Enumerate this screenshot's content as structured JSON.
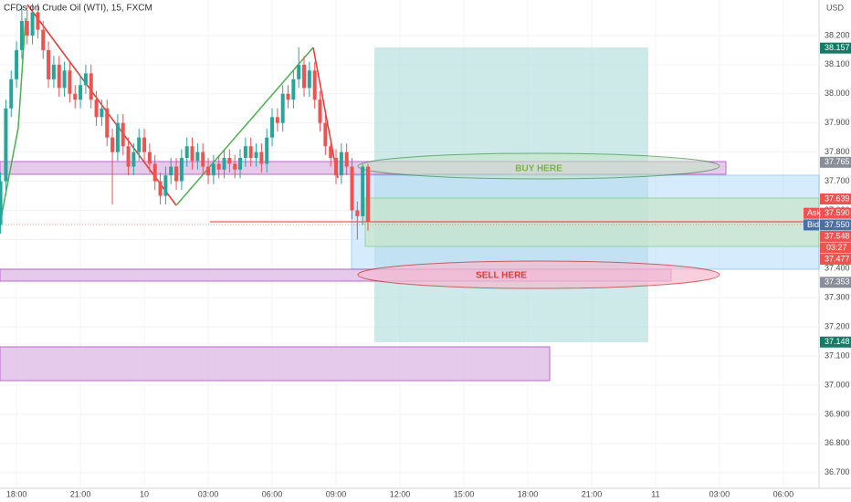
{
  "chart_data": {
    "type": "candlestick",
    "title": "CFDs on Crude Oil (WTI), 15, FXCM",
    "currency": "USD",
    "up_color": "#26a69a",
    "down_color": "#ef5350",
    "xlim": [
      -3.1,
      150.7
    ],
    "ylim": [
      36.646,
      38.322
    ],
    "x": [
      -3,
      -2,
      -1,
      0,
      1,
      2,
      3,
      4,
      5,
      6,
      7,
      8,
      9,
      10,
      11,
      12,
      13,
      14,
      15,
      16,
      17,
      18,
      19,
      20,
      21,
      22,
      23,
      24,
      25,
      26,
      27,
      28,
      29,
      30,
      31,
      32,
      33,
      34,
      35,
      36,
      37,
      38,
      39,
      40,
      41,
      42,
      43,
      44,
      45,
      46,
      47,
      48,
      49,
      50,
      51,
      52,
      53,
      54,
      55,
      56,
      57,
      58,
      59,
      60,
      61,
      62,
      63,
      64,
      65,
      66
    ],
    "open": [
      37.55,
      37.7,
      37.95,
      38.05,
      38.15,
      38.25,
      38.2,
      38.28,
      38.22,
      38.15,
      38.05,
      38.1,
      38.02,
      38.08,
      38.0,
      37.98,
      38.03,
      38.07,
      37.98,
      37.92,
      37.95,
      37.85,
      37.8,
      37.9,
      37.82,
      37.75,
      37.8,
      37.85,
      37.8,
      37.76,
      37.7,
      37.65,
      37.72,
      37.75,
      37.7,
      37.78,
      37.82,
      37.77,
      37.8,
      37.75,
      37.72,
      37.76,
      37.74,
      37.78,
      37.76,
      37.74,
      37.78,
      37.82,
      37.78,
      37.8,
      37.76,
      37.85,
      37.92,
      37.9,
      38.0,
      37.98,
      38.05,
      38.1,
      38.02,
      38.08,
      37.98,
      37.9,
      37.82,
      37.78,
      37.72,
      37.8,
      37.75,
      37.6,
      37.58,
      37.75
    ],
    "high": [
      37.73,
      37.98,
      38.08,
      38.18,
      38.3,
      38.3,
      38.31,
      38.31,
      38.25,
      38.18,
      38.13,
      38.13,
      38.11,
      38.11,
      38.03,
      38.06,
      38.1,
      38.1,
      38.01,
      37.98,
      37.98,
      37.88,
      37.93,
      37.93,
      37.85,
      37.83,
      37.88,
      37.88,
      37.83,
      37.79,
      37.73,
      37.75,
      37.78,
      37.78,
      37.81,
      37.85,
      37.85,
      37.83,
      37.83,
      37.78,
      37.79,
      37.79,
      37.81,
      37.81,
      37.79,
      37.81,
      37.85,
      37.85,
      37.83,
      37.83,
      37.88,
      37.95,
      37.95,
      38.03,
      38.03,
      38.08,
      38.16,
      38.13,
      38.11,
      38.11,
      38.01,
      37.93,
      37.85,
      37.81,
      37.83,
      37.83,
      37.78,
      37.63,
      37.76,
      37.76
    ],
    "low": [
      37.52,
      37.67,
      37.92,
      38.02,
      38.12,
      38.17,
      38.17,
      38.19,
      38.12,
      38.02,
      38.02,
      37.99,
      37.99,
      37.97,
      37.95,
      37.95,
      38.0,
      37.95,
      37.89,
      37.89,
      37.82,
      37.62,
      37.77,
      37.79,
      37.72,
      37.72,
      37.77,
      37.77,
      37.73,
      37.67,
      37.62,
      37.62,
      37.69,
      37.67,
      37.67,
      37.75,
      37.74,
      37.74,
      37.72,
      37.69,
      37.69,
      37.71,
      37.71,
      37.73,
      37.71,
      37.71,
      37.75,
      37.75,
      37.75,
      37.73,
      37.73,
      37.82,
      37.87,
      37.87,
      37.95,
      37.95,
      38.02,
      37.99,
      37.99,
      37.95,
      37.87,
      37.79,
      37.75,
      37.69,
      37.69,
      37.72,
      37.57,
      37.5,
      37.55,
      37.53
    ],
    "close": [
      37.7,
      37.95,
      38.05,
      38.15,
      38.25,
      38.2,
      38.28,
      38.22,
      38.15,
      38.05,
      38.1,
      38.02,
      38.08,
      38.0,
      37.98,
      38.03,
      38.07,
      37.98,
      37.92,
      37.95,
      37.85,
      37.8,
      37.9,
      37.82,
      37.75,
      37.8,
      37.85,
      37.8,
      37.76,
      37.7,
      37.65,
      37.72,
      37.75,
      37.7,
      37.78,
      37.82,
      37.77,
      37.8,
      37.75,
      37.72,
      37.76,
      37.74,
      37.78,
      37.76,
      37.74,
      37.78,
      37.82,
      37.78,
      37.8,
      37.76,
      37.85,
      37.92,
      37.9,
      38.0,
      37.98,
      38.05,
      38.1,
      38.02,
      38.08,
      37.98,
      37.9,
      37.82,
      37.78,
      37.72,
      37.8,
      37.75,
      37.6,
      37.58,
      37.75,
      37.56
    ],
    "yticks": [
      {
        "value": 36.7,
        "label": "36.700"
      },
      {
        "value": 36.8,
        "label": "36.800"
      },
      {
        "value": 36.9,
        "label": "36.900"
      },
      {
        "value": 37.0,
        "label": "37.000"
      },
      {
        "value": 37.1,
        "label": "37.100"
      },
      {
        "value": 37.2,
        "label": "37.200"
      },
      {
        "value": 37.3,
        "label": "37.300"
      },
      {
        "value": 37.4,
        "label": "37.400"
      },
      {
        "value": 37.5,
        "label": "37.500"
      },
      {
        "value": 37.6,
        "label": "37.600"
      },
      {
        "value": 37.7,
        "label": "37.700"
      },
      {
        "value": 37.8,
        "label": "37.800"
      },
      {
        "value": 37.9,
        "label": "37.900"
      },
      {
        "value": 38.0,
        "label": "38.000"
      },
      {
        "value": 38.1,
        "label": "38.100"
      },
      {
        "value": 38.2,
        "label": "38.200"
      }
    ],
    "xticks": [
      {
        "value": 0,
        "label": "18:00"
      },
      {
        "value": 12,
        "label": "21:00"
      },
      {
        "value": 24,
        "label": "10"
      },
      {
        "value": 36,
        "label": "03:00"
      },
      {
        "value": 48,
        "label": "06:00"
      },
      {
        "value": 60,
        "label": "09:00"
      },
      {
        "value": 72,
        "label": "12:00"
      },
      {
        "value": 84,
        "label": "15:00"
      },
      {
        "value": 96,
        "label": "18:00"
      },
      {
        "value": 108,
        "label": "21:00"
      },
      {
        "value": 120,
        "label": "11"
      },
      {
        "value": 132,
        "label": "03:00"
      },
      {
        "value": 144,
        "label": "06:00"
      }
    ],
    "price_labels": [
      {
        "value": 38.157,
        "label": "38.157",
        "color": "#137c66"
      },
      {
        "value": 37.765,
        "label": "37.765",
        "color": "#8a8e99"
      },
      {
        "value": 37.639,
        "label": "37.639",
        "color": "#ef5350"
      },
      {
        "value": 37.59,
        "label": "37.590",
        "color": "#ef5350",
        "tag": "Ask"
      },
      {
        "value": 37.55,
        "label": "37.550",
        "color": "#4a6fa5",
        "tag": "Bid"
      },
      {
        "value": 37.548,
        "label": "37.548",
        "color": "#ef5350"
      },
      {
        "value": 37.477,
        "label": "37.477",
        "color": "#ef5350"
      },
      {
        "value": 37.353,
        "label": "37.353",
        "color": "#8a8e99"
      },
      {
        "value": 37.148,
        "label": "37.148",
        "color": "#137c66"
      }
    ],
    "countdown": "03:27",
    "annotations": [
      "BUY HERE",
      "SELL HERE"
    ]
  }
}
